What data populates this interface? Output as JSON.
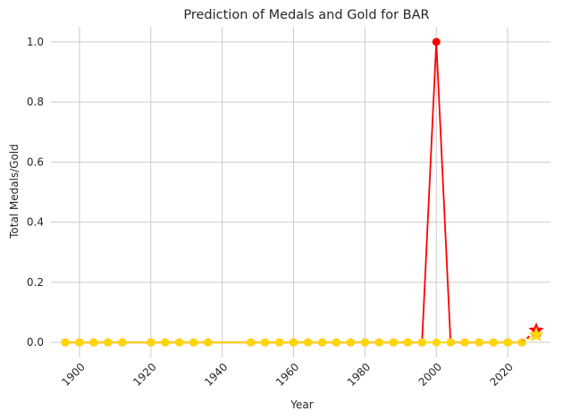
{
  "chart_data": {
    "type": "line",
    "title": "Prediction of Medals and Gold for BAR",
    "xlabel": "Year",
    "ylabel": "Total Medals/Gold",
    "xlim": [
      1892,
      2032
    ],
    "ylim": [
      -0.05,
      1.05
    ],
    "grid": true,
    "x_ticks": [
      1900,
      1920,
      1940,
      1960,
      1980,
      2000,
      2020
    ],
    "y_ticks": [
      0.0,
      0.2,
      0.4,
      0.6,
      0.8,
      1.0
    ],
    "x_tick_labels": [
      "1900",
      "1920",
      "1940",
      "1960",
      "1980",
      "2000",
      "2020"
    ],
    "y_tick_labels": [
      "0.0",
      "0.2",
      "0.4",
      "0.6",
      "0.8",
      "1.0"
    ],
    "series": [
      {
        "color": "#ff0000",
        "marker": "circle",
        "x": [
          1896,
          1900,
          1904,
          1908,
          1912,
          1920,
          1924,
          1928,
          1932,
          1936,
          1948,
          1952,
          1956,
          1960,
          1964,
          1968,
          1972,
          1976,
          1980,
          1984,
          1988,
          1992,
          1996,
          2000,
          2004,
          2008,
          2012,
          2016,
          2020,
          2024
        ],
        "values": [
          0,
          0,
          0,
          0,
          0,
          0,
          0,
          0,
          0,
          0,
          0,
          0,
          0,
          0,
          0,
          0,
          0,
          0,
          0,
          0,
          0,
          0,
          0,
          1,
          0,
          0,
          0,
          0,
          0,
          0
        ]
      },
      {
        "color": "#ffd700",
        "marker": "circle",
        "x": [
          1896,
          1900,
          1904,
          1908,
          1912,
          1920,
          1924,
          1928,
          1932,
          1936,
          1948,
          1952,
          1956,
          1960,
          1964,
          1968,
          1972,
          1976,
          1980,
          1984,
          1988,
          1992,
          1996,
          2000,
          2004,
          2008,
          2012,
          2016,
          2020,
          2024
        ],
        "values": [
          0,
          0,
          0,
          0,
          0,
          0,
          0,
          0,
          0,
          0,
          0,
          0,
          0,
          0,
          0,
          0,
          0,
          0,
          0,
          0,
          0,
          0,
          0,
          0,
          0,
          0,
          0,
          0,
          0,
          0
        ]
      }
    ],
    "predictions": [
      {
        "color": "#ff0000",
        "marker": "star",
        "from": [
          2024,
          0
        ],
        "x": 2028,
        "y": 0.04
      },
      {
        "color": "#ffd700",
        "marker": "star",
        "from": [
          2024,
          0
        ],
        "x": 2028,
        "y": 0.025
      }
    ]
  }
}
